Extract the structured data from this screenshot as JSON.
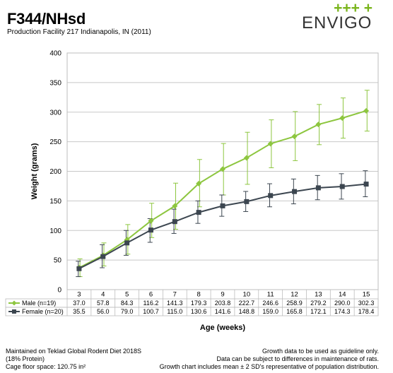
{
  "header": {
    "title": "F344/NHsd",
    "subtitle": "Production Facility 217 Indianapolis, IN (2011)"
  },
  "logo": {
    "plus_marks": "+++ +",
    "text": "ENVIGO",
    "accent_color": "#7ab51d"
  },
  "chart_data": {
    "type": "line",
    "xlabel": "Age (weeks)",
    "ylabel": "Weight (grams)",
    "ylim": [
      0,
      400
    ],
    "yticks": [
      0,
      50,
      100,
      150,
      200,
      250,
      300,
      350,
      400
    ],
    "x": [
      3,
      4,
      5,
      6,
      7,
      8,
      9,
      10,
      11,
      12,
      13,
      14,
      15
    ],
    "grid": "horizontal",
    "legend_placement": "table-below",
    "series": [
      {
        "name": "Male (n=19)",
        "color": "#8dc63f",
        "marker": "diamond",
        "values": [
          37.0,
          57.8,
          84.3,
          116.2,
          141.3,
          179.3,
          203.8,
          222.7,
          246.6,
          258.9,
          279.2,
          290.0,
          302.3
        ],
        "value_labels": [
          "37.0",
          "57.8",
          "84.3",
          "116.2",
          "141.3",
          "179.3",
          "203.8",
          "222.7",
          "246.6",
          "258.9",
          "279.2",
          "290.0",
          "302.3"
        ],
        "error_low": [
          22,
          40,
          60,
          88,
          102,
          140,
          160,
          178,
          206,
          218,
          245,
          256,
          268
        ],
        "error_high": [
          52,
          79,
          110,
          146,
          180,
          220,
          247,
          266,
          287,
          301,
          313,
          324,
          337
        ]
      },
      {
        "name": "Female (n=20)",
        "color": "#3c4650",
        "marker": "square",
        "values": [
          35.5,
          56.0,
          79.0,
          100.7,
          115.0,
          130.6,
          141.6,
          148.8,
          159.0,
          165.8,
          172.1,
          174.3,
          178.4
        ],
        "value_labels": [
          "35.5",
          "56.0",
          "79.0",
          "100.7",
          "115.0",
          "130.6",
          "141.6",
          "148.8",
          "159.0",
          "165.8",
          "172.1",
          "174.3",
          "178.4"
        ],
        "error_low": [
          22,
          37,
          58,
          80,
          95,
          112,
          124,
          132,
          140,
          145,
          152,
          153,
          157
        ],
        "error_high": [
          48,
          76,
          100,
          120,
          136,
          150,
          160,
          166,
          179,
          187,
          193,
          196,
          201
        ]
      }
    ]
  },
  "footer": {
    "left": [
      "Maintained on Teklad Global Rodent Diet 2018S",
      "(18% Protein)",
      "Cage floor space: 120.75 in²"
    ],
    "right": [
      "Growth data to be used as guideline only.",
      "Data can be subject to differences in maintenance of rats.",
      "Growth chart includes mean ± 2 SD's representative of population distribution."
    ]
  }
}
